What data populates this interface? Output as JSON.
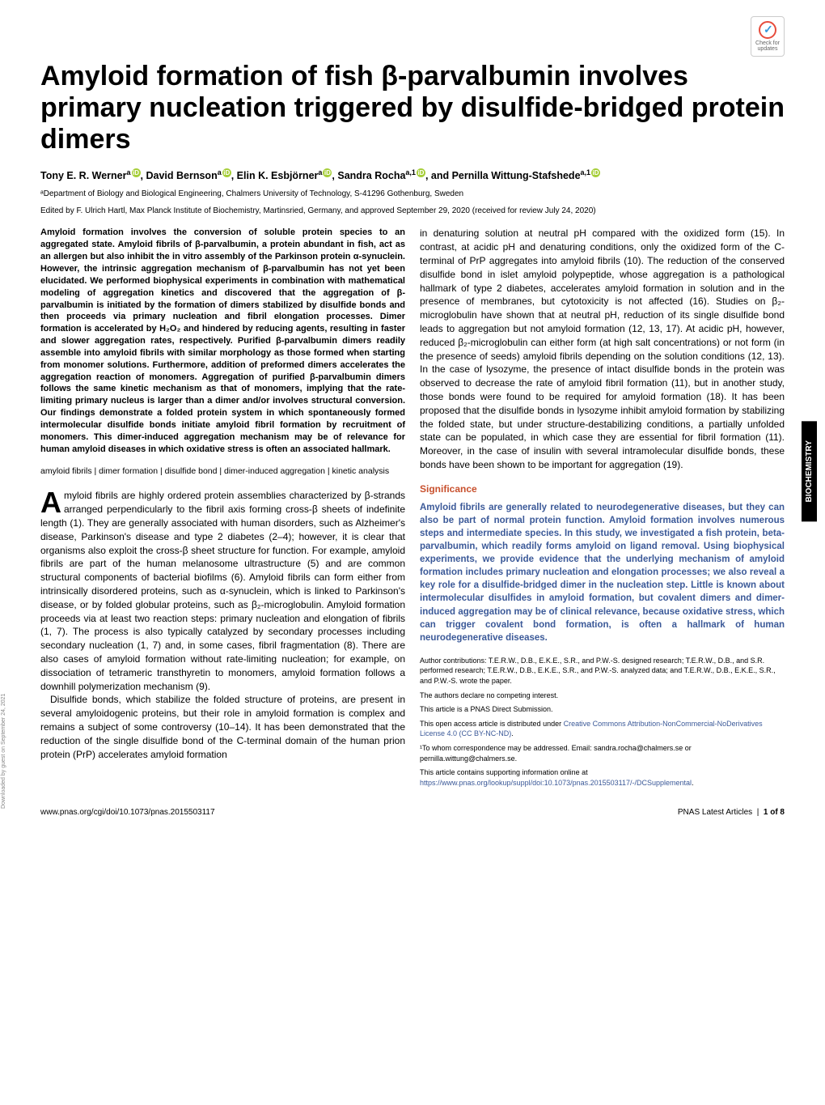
{
  "badge": {
    "label": "Check for updates"
  },
  "title": "Amyloid formation of fish β-parvalbumin involves primary nucleation triggered by disulfide-bridged protein dimers",
  "authors_html": "Tony E. R. Wernerᵃ ⓘ, David Bernsonᵃ ⓘ, Elin K. Esbjörnerᵃ ⓘ, Sandra Rochaᵃ·¹ ⓘ, and Pernilla Wittung-Stafshedeᵃ·¹ ⓘ",
  "authors": [
    {
      "name": "Tony E. R. Werner",
      "aff": "a",
      "orcid": true
    },
    {
      "name": "David Bernson",
      "aff": "a",
      "orcid": true
    },
    {
      "name": "Elin K. Esbjörner",
      "aff": "a",
      "orcid": true
    },
    {
      "name": "Sandra Rocha",
      "aff": "a,1",
      "orcid": true
    },
    {
      "name": "Pernilla Wittung-Stafshede",
      "aff": "a,1",
      "orcid": true
    }
  ],
  "affiliation": "ᵃDepartment of Biology and Biological Engineering, Chalmers University of Technology, S-41296 Gothenburg, Sweden",
  "edited": "Edited by F. Ulrich Hartl, Max Planck Institute of Biochemistry, Martinsried, Germany, and approved September 29, 2020 (received for review July 24, 2020)",
  "abstract": "Amyloid formation involves the conversion of soluble protein species to an aggregated state. Amyloid fibrils of β-parvalbumin, a protein abundant in fish, act as an allergen but also inhibit the in vitro assembly of the Parkinson protein α-synuclein. However, the intrinsic aggregation mechanism of β-parvalbumin has not yet been elucidated. We performed biophysical experiments in combination with mathematical modeling of aggregation kinetics and discovered that the aggregation of β-parvalbumin is initiated by the formation of dimers stabilized by disulfide bonds and then proceeds via primary nucleation and fibril elongation processes. Dimer formation is accelerated by H₂O₂ and hindered by reducing agents, resulting in faster and slower aggregation rates, respectively. Purified β-parvalbumin dimers readily assemble into amyloid fibrils with similar morphology as those formed when starting from monomer solutions. Furthermore, addition of preformed dimers accelerates the aggregation reaction of monomers. Aggregation of purified β-parvalbumin dimers follows the same kinetic mechanism as that of monomers, implying that the rate-limiting primary nucleus is larger than a dimer and/or involves structural conversion. Our findings demonstrate a folded protein system in which spontaneously formed intermolecular disulfide bonds initiate amyloid fibril formation by recruitment of monomers. This dimer-induced aggregation mechanism may be of relevance for human amyloid diseases in which oxidative stress is often an associated hallmark.",
  "keywords": "amyloid fibrils | dimer formation | disulfide bond | dimer-induced aggregation | kinetic analysis",
  "body_p1": "myloid fibrils are highly ordered protein assemblies characterized by β-strands arranged perpendicularly to the fibril axis forming cross-β sheets of indefinite length (1). They are generally associated with human disorders, such as Alzheimer's disease, Parkinson's disease and type 2 diabetes (2–4); however, it is clear that organisms also exploit the cross-β sheet structure for function. For example, amyloid fibrils are part of the human melanosome ultrastructure (5) and are common structural components of bacterial biofilms (6). Amyloid fibrils can form either from intrinsically disordered proteins, such as α-synuclein, which is linked to Parkinson's disease, or by folded globular proteins, such as β₂-microglobulin. Amyloid formation proceeds via at least two reaction steps: primary nucleation and elongation of fibrils (1, 7). The process is also typically catalyzed by secondary processes including secondary nucleation (1, 7) and, in some cases, fibril fragmentation (8). There are also cases of amyloid formation without rate-limiting nucleation; for example, on dissociation of tetrameric transthyretin to monomers, amyloid formation follows a downhill polymerization mechanism (9).",
  "body_p2": "Disulfide bonds, which stabilize the folded structure of proteins, are present in several amyloidogenic proteins, but their role in amyloid formation is complex and remains a subject of some controversy (10–14). It has been demonstrated that the reduction of the single disulfide bond of the C-terminal domain of the human prion protein (PrP) accelerates amyloid formation",
  "continuation": "in denaturing solution at neutral pH compared with the oxidized form (15). In contrast, at acidic pH and denaturing conditions, only the oxidized form of the C-terminal of PrP aggregates into amyloid fibrils (10). The reduction of the conserved disulfide bond in islet amyloid polypeptide, whose aggregation is a pathological hallmark of type 2 diabetes, accelerates amyloid formation in solution and in the presence of membranes, but cytotoxicity is not affected (16). Studies on β₂-microglobulin have shown that at neutral pH, reduction of its single disulfide bond leads to aggregation but not amyloid formation (12, 13, 17). At acidic pH, however, reduced β₂-microglobulin can either form (at high salt concentrations) or not form (in the presence of seeds) amyloid fibrils depending on the solution conditions (12, 13). In the case of lysozyme, the presence of intact disulfide bonds in the protein was observed to decrease the rate of amyloid fibril formation (11), but in another study, those bonds were found to be required for amyloid formation (18). It has been proposed that the disulfide bonds in lysozyme inhibit amyloid formation by stabilizing the folded state, but under structure-destabilizing conditions, a partially unfolded state can be populated, in which case they are essential for fibril formation (11). Moreover, in the case of insulin with several intramolecular disulfide bonds, these bonds have been shown to be important for aggregation (19).",
  "significance": {
    "heading": "Significance",
    "text": "Amyloid fibrils are generally related to neurodegenerative diseases, but they can also be part of normal protein function. Amyloid formation involves numerous steps and intermediate species. In this study, we investigated a fish protein, beta-parvalbumin, which readily forms amyloid on ligand removal. Using biophysical experiments, we provide evidence that the underlying mechanism of amyloid formation includes primary nucleation and elongation processes; we also reveal a key role for a disulfide-bridged dimer in the nucleation step. Little is known about intermolecular disulfides in amyloid formation, but covalent dimers and dimer-induced aggregation may be of clinical relevance, because oxidative stress, which can trigger covalent bond formation, is often a hallmark of human neurodegenerative diseases."
  },
  "footer": {
    "contributions": "Author contributions: T.E.R.W., D.B., E.K.E., S.R., and P.W.-S. designed research; T.E.R.W., D.B., and S.R. performed research; T.E.R.W., D.B., E.K.E., S.R., and P.W.-S. analyzed data; and T.E.R.W., D.B., E.K.E., S.R., and P.W.-S. wrote the paper.",
    "competing": "The authors declare no competing interest.",
    "direct": "This article is a PNAS Direct Submission.",
    "license_prefix": "This open access article is distributed under ",
    "license_link": "Creative Commons Attribution-NonCommercial-NoDerivatives License 4.0 (CC BY-NC-ND)",
    "license_suffix": ".",
    "correspondence": "¹To whom correspondence may be addressed. Email: sandra.rocha@chalmers.se or pernilla.wittung@chalmers.se.",
    "supplemental_prefix": "This article contains supporting information online at ",
    "supplemental_link": "https://www.pnas.org/lookup/suppl/doi:10.1073/pnas.2015503117/-/DCSupplemental",
    "supplemental_suffix": "."
  },
  "pagefooter": {
    "doi": "www.pnas.org/cgi/doi/10.1073/pnas.2015503117",
    "latest": "PNAS Latest Articles",
    "num": "1 of 8"
  },
  "sidelabel": "BIOCHEMISTRY",
  "download": "Downloaded by guest on September 24, 2021",
  "colors": {
    "significance_heading": "#c8502d",
    "significance_text": "#3b5998",
    "link": "#3b5998",
    "orcid_bg": "#a6ce39"
  }
}
